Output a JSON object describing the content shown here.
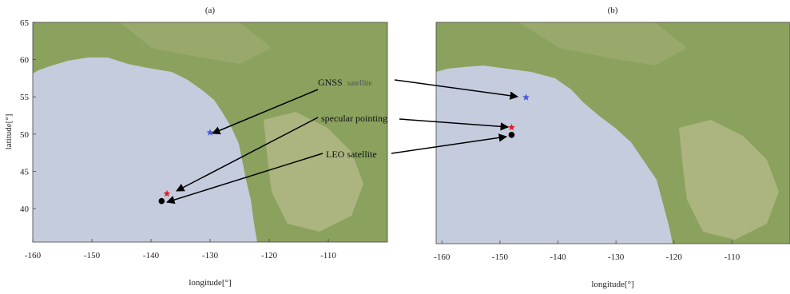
{
  "chart_data": [
    {
      "type": "scatter",
      "title": "(a)",
      "xlabel": "longitude[°]",
      "ylabel": "latitude[°]",
      "xlim": [
        -160,
        -100
      ],
      "ylim": [
        35.5,
        65
      ],
      "xticks": [
        -160,
        -150,
        -140,
        -130,
        -120,
        -110
      ],
      "yticks": [
        40,
        45,
        50,
        55,
        60,
        65
      ],
      "grid": false,
      "background": "terrain map (ocean and land)",
      "series": [
        {
          "name": "GNSS satellite",
          "x": [
            -130.0
          ],
          "y": [
            50.2
          ],
          "marker": "star",
          "color": "#4a5ad8"
        },
        {
          "name": "specular pointing",
          "x": [
            -137.3
          ],
          "y": [
            42.0
          ],
          "marker": "star",
          "color": "#e02020"
        },
        {
          "name": "LEO satellite",
          "x": [
            -138.2
          ],
          "y": [
            41.0
          ],
          "marker": "circle",
          "color": "#000000"
        }
      ]
    },
    {
      "type": "scatter",
      "title": "(b)",
      "xlabel": "longitude[°]",
      "ylabel": "",
      "xlim": [
        -161,
        -100
      ],
      "ylim": [
        35.5,
        65
      ],
      "xticks": [
        -160,
        -150,
        -140,
        -130,
        -120,
        -110
      ],
      "yticks": [],
      "grid": false,
      "background": "terrain map (ocean and land)",
      "series": [
        {
          "name": "GNSS satellite",
          "x": [
            -145.5
          ],
          "y": [
            55.0
          ],
          "marker": "star",
          "color": "#4a5ad8"
        },
        {
          "name": "specular pointing",
          "x": [
            -148.0
          ],
          "y": [
            51.0
          ],
          "marker": "star",
          "color": "#e02020"
        },
        {
          "name": "LEO satellite",
          "x": [
            -148.0
          ],
          "y": [
            50.0
          ],
          "marker": "circle",
          "color": "#000000"
        }
      ]
    }
  ],
  "annotations": {
    "gnss_main": "GNSS",
    "gnss_sub": "satellite",
    "specular": "specular pointing",
    "leo": "LEO satellite"
  },
  "colors": {
    "ocean": "#c5ccde",
    "land_green": "#8aa25e",
    "land_light": "#c8c49a",
    "gnss": "#4a5ad8",
    "specular": "#e02020",
    "leo": "#000000"
  }
}
